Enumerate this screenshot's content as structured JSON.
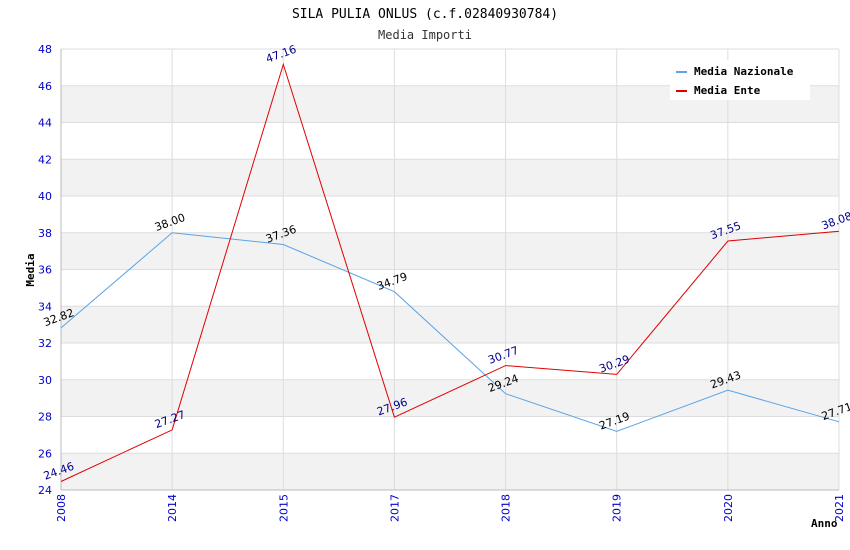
{
  "chart_data": {
    "type": "line",
    "title": "SILA PULIA ONLUS (c.f.02840930784)",
    "subtitle": "Media Importi",
    "xlabel": "Anno",
    "ylabel": "Media",
    "categories": [
      "2008",
      "2014",
      "2015",
      "2017",
      "2018",
      "2019",
      "2020",
      "2021"
    ],
    "ylim": [
      24,
      48
    ],
    "yticks": [
      24,
      26,
      28,
      30,
      32,
      34,
      36,
      38,
      40,
      42,
      44,
      46,
      48
    ],
    "grid": true,
    "legend_position": "top-right",
    "series": [
      {
        "name": "Media Nazionale",
        "color": "#5ba3e6",
        "label_color": "#000000",
        "values": [
          32.82,
          38.0,
          37.36,
          34.79,
          29.24,
          27.19,
          29.43,
          27.71
        ],
        "labels": [
          "32.82",
          "38.00",
          "37.36",
          "34.79",
          "29.24",
          "27.19",
          "29.43",
          "27.71"
        ]
      },
      {
        "name": "Media Ente",
        "color": "#e00000",
        "label_color": "#00008b",
        "values": [
          24.46,
          27.27,
          47.16,
          27.96,
          30.77,
          30.29,
          37.55,
          38.08
        ],
        "labels": [
          "24.46",
          "27.27",
          "47.16",
          "27.96",
          "30.77",
          "30.29",
          "37.55",
          "38.08"
        ]
      }
    ]
  }
}
